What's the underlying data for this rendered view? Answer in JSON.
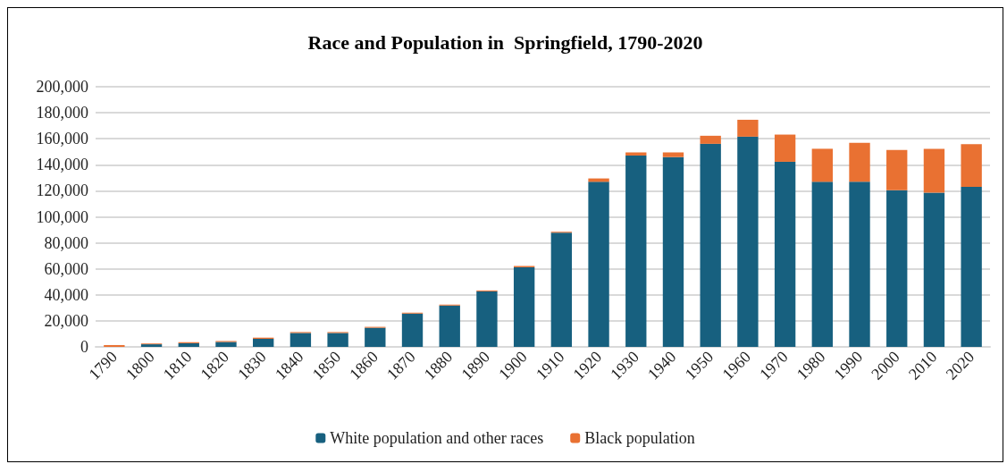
{
  "chart_data": {
    "type": "bar",
    "title": "Race and Population in  Springfield, 1790-2020",
    "stacked": true,
    "categories": [
      "1790",
      "1800",
      "1810",
      "1820",
      "1830",
      "1840",
      "1850",
      "1860",
      "1870",
      "1880",
      "1890",
      "1900",
      "1910",
      "1920",
      "1930",
      "1940",
      "1950",
      "1960",
      "1970",
      "1980",
      "1990",
      "2000",
      "2010",
      "2020"
    ],
    "series": [
      {
        "name": "White population and other races",
        "color": "#17607f",
        "values": [
          0,
          2000,
          2800,
          3800,
          6200,
          10700,
          10700,
          14700,
          25600,
          31800,
          42700,
          61200,
          87800,
          126900,
          147100,
          145900,
          156100,
          161600,
          142300,
          126900,
          126900,
          120500,
          118600,
          123100
        ]
      },
      {
        "name": "Black population",
        "color": "#e97132",
        "values": [
          1400,
          600,
          800,
          700,
          900,
          700,
          700,
          700,
          700,
          700,
          700,
          1000,
          700,
          2600,
          2400,
          3600,
          6200,
          13000,
          20900,
          25400,
          29900,
          30900,
          33700,
          32800
        ]
      }
    ],
    "ylim": [
      0,
      200000
    ],
    "yticks": [
      0,
      {
        "value": 20000,
        "label": "20,000"
      },
      {
        "value": 40000,
        "label": "40,000"
      },
      {
        "value": 60000,
        "label": "60,000"
      },
      {
        "value": 80000,
        "label": "80,000"
      },
      {
        "value": 100000,
        "label": "100,000"
      },
      {
        "value": 120000,
        "label": "120,000"
      },
      {
        "value": 140000,
        "label": "140,000"
      },
      {
        "value": 160000,
        "label": "160,000"
      },
      {
        "value": 180000,
        "label": "180,000"
      },
      {
        "value": 200000,
        "label": "200,000"
      }
    ],
    "grid": "y",
    "legend": "bottom"
  }
}
